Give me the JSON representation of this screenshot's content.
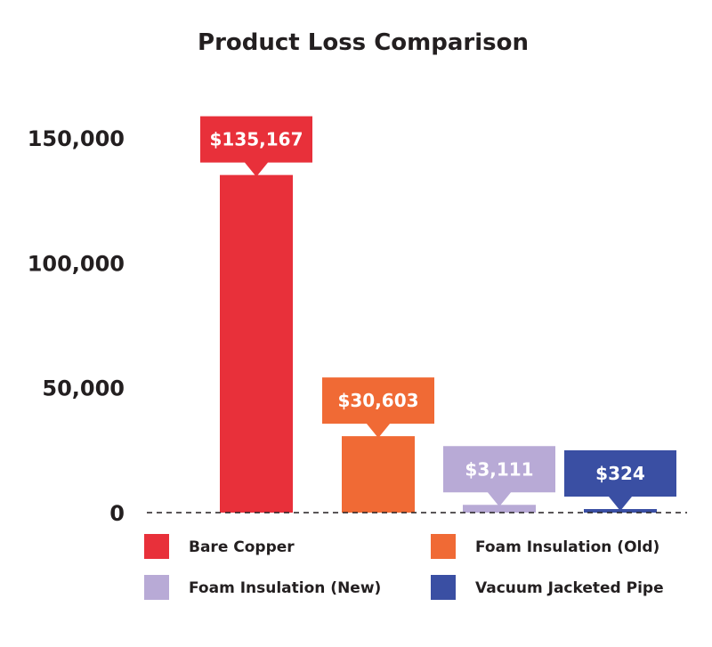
{
  "chart_data": {
    "type": "bar",
    "title": "Product Loss Comparison",
    "xlabel": "",
    "ylabel": "",
    "ylim": [
      0,
      150000
    ],
    "yticks": [
      {
        "value": 0,
        "label": "0"
      },
      {
        "value": 50000,
        "label": "50,000"
      },
      {
        "value": 100000,
        "label": "100,000"
      },
      {
        "value": 150000,
        "label": "150,000"
      }
    ],
    "categories": [
      "Bare Copper",
      "Foam Insulation (Old)",
      "Foam Insulation (New)",
      "Vacuum Jacketed Pipe"
    ],
    "values": [
      135167,
      30603,
      3111,
      324
    ],
    "data_labels": [
      "$135,167",
      "$30,603",
      "$3,111",
      "$324"
    ],
    "colors": [
      "#e8303a",
      "#f06a35",
      "#b8aad6",
      "#3a4fa3"
    ],
    "legend": [
      {
        "label": "Bare Copper",
        "color": "#e8303a"
      },
      {
        "label": "Foam Insulation (Old)",
        "color": "#f06a35"
      },
      {
        "label": "Foam Insulation (New)",
        "color": "#b8aad6"
      },
      {
        "label": "Vacuum Jacketed Pipe",
        "color": "#3a4fa3"
      }
    ],
    "legend_position": "bottom",
    "baseline_style": "dashed"
  }
}
